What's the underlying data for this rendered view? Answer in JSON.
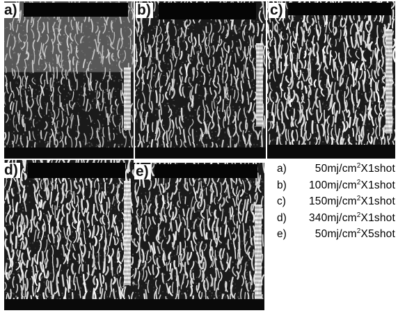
{
  "panels": [
    {
      "label": "a)",
      "density": 0.55,
      "contrast": 0.55,
      "fluence": "50mj/cm²X1shot"
    },
    {
      "label": "b)",
      "density": 0.75,
      "contrast": 0.75,
      "fluence": "100mj/cm²X1shot"
    },
    {
      "label": "c)",
      "density": 0.95,
      "contrast": 0.95,
      "fluence": "150mj/cm²X1shot"
    },
    {
      "label": "d)",
      "density": 0.95,
      "contrast": 0.95,
      "fluence": "340mj/cm²X1shot"
    },
    {
      "label": "e)",
      "density": 0.85,
      "contrast": 0.85,
      "fluence": "50mj/cm²X5shot"
    }
  ],
  "legend": [
    {
      "key": "a)",
      "pre": "50mj/cm",
      "sup": "2",
      "post": "X1shot"
    },
    {
      "key": "b)",
      "pre": "100mj/cm",
      "sup": "2",
      "post": "X1shot"
    },
    {
      "key": "c)",
      "pre": "150mj/cm",
      "sup": "2",
      "post": "X1shot"
    },
    {
      "key": "d)",
      "pre": "340mj/cm",
      "sup": "2",
      "post": "X1shot"
    },
    {
      "key": "e)",
      "pre": "50mj/cm",
      "sup": "2",
      "post": "X5shot"
    }
  ],
  "colors": {
    "background": "#ffffff",
    "bars": "#050505",
    "ripple_light": "#f2f2f2",
    "ripple_dark": "#1a1a1a"
  }
}
